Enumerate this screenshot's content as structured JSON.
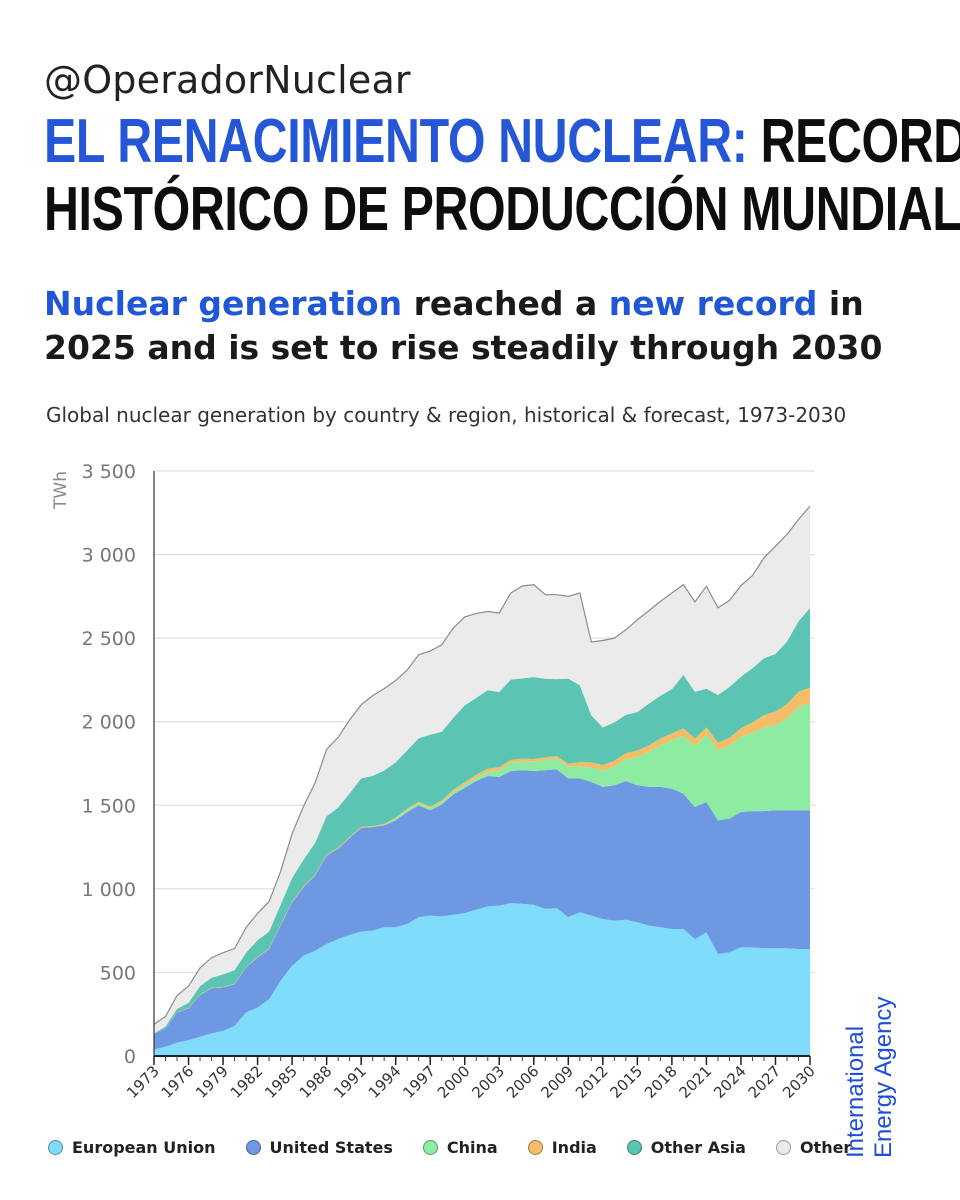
{
  "header": {
    "handle": "@OperadorNuclear",
    "headline_blue": "EL RENACIMIENTO NUCLEAR:",
    "headline_black_1": " RECORD",
    "headline_black_2": "HISTÓRICO DE PRODUCCIÓN MUNDIAL"
  },
  "subhead": {
    "part1": "Nuclear generation",
    "part2": " reached a ",
    "part3": "new record",
    "part4": " in",
    "part5": "2025 and is set to rise steadily through 2030"
  },
  "branding": {
    "line1": "International",
    "line2": "Energy Agency"
  },
  "chart_data": {
    "type": "area",
    "stacked": true,
    "title": "Global nuclear generation by country & region, historical & forecast, 1973-2030",
    "ylabel": "TWh",
    "ylim": [
      0,
      3500
    ],
    "yticks": [
      0,
      500,
      1000,
      1500,
      2000,
      2500,
      3000,
      3500
    ],
    "ytick_labels": [
      "0",
      "500",
      "1 000",
      "1 500",
      "2 000",
      "2 500",
      "3 000",
      "3 500"
    ],
    "xlim": [
      1973,
      2030
    ],
    "xticks": [
      1973,
      1976,
      1979,
      1982,
      1985,
      1988,
      1991,
      1994,
      1997,
      2000,
      2003,
      2006,
      2009,
      2012,
      2015,
      2018,
      2021,
      2024,
      2027,
      2030
    ],
    "grid": true,
    "legend_position": "bottom",
    "x": [
      1973,
      1974,
      1975,
      1976,
      1977,
      1978,
      1979,
      1980,
      1981,
      1982,
      1983,
      1984,
      1985,
      1986,
      1987,
      1988,
      1989,
      1990,
      1991,
      1992,
      1993,
      1994,
      1995,
      1996,
      1997,
      1998,
      1999,
      2000,
      2001,
      2002,
      2003,
      2004,
      2005,
      2006,
      2007,
      2008,
      2009,
      2010,
      2011,
      2012,
      2013,
      2014,
      2015,
      2016,
      2017,
      2018,
      2019,
      2020,
      2021,
      2022,
      2023,
      2024,
      2025,
      2026,
      2027,
      2028,
      2029,
      2030
    ],
    "series": [
      {
        "name": "European Union",
        "color": "#7fdcfb",
        "values": [
          40,
          55,
          80,
          95,
          115,
          135,
          150,
          180,
          260,
          290,
          340,
          450,
          540,
          600,
          630,
          670,
          700,
          725,
          745,
          750,
          770,
          770,
          790,
          830,
          840,
          835,
          845,
          855,
          875,
          895,
          900,
          915,
          910,
          905,
          880,
          885,
          830,
          860,
          840,
          820,
          810,
          815,
          800,
          780,
          770,
          760,
          760,
          700,
          740,
          610,
          620,
          650,
          650,
          645,
          645,
          645,
          640,
          640
        ]
      },
      {
        "name": "United States",
        "color": "#6e99e2",
        "values": [
          90,
          110,
          180,
          190,
          250,
          270,
          260,
          250,
          270,
          300,
          300,
          330,
          380,
          410,
          450,
          530,
          540,
          580,
          620,
          620,
          610,
          640,
          670,
          670,
          630,
          670,
          720,
          750,
          770,
          780,
          770,
          790,
          800,
          800,
          830,
          830,
          830,
          800,
          800,
          790,
          810,
          830,
          820,
          830,
          840,
          840,
          810,
          790,
          780,
          800,
          800,
          810,
          815,
          820,
          825,
          825,
          830,
          830
        ]
      },
      {
        "name": "China",
        "color": "#8eeca2",
        "values": [
          0,
          0,
          0,
          0,
          0,
          0,
          0,
          0,
          0,
          0,
          0,
          0,
          0,
          0,
          0,
          0,
          0,
          0,
          0,
          0,
          2,
          10,
          12,
          13,
          14,
          14,
          15,
          17,
          20,
          24,
          40,
          50,
          53,
          55,
          60,
          65,
          70,
          74,
          85,
          98,
          112,
          130,
          170,
          210,
          250,
          290,
          345,
          365,
          405,
          420,
          435,
          450,
          470,
          500,
          510,
          550,
          620,
          640
        ]
      },
      {
        "name": "India",
        "color": "#f5bd67",
        "values": [
          0,
          2,
          2,
          3,
          3,
          3,
          3,
          3,
          3,
          3,
          4,
          4,
          5,
          5,
          5,
          5,
          6,
          6,
          6,
          6,
          6,
          7,
          7,
          8,
          9,
          10,
          12,
          16,
          18,
          20,
          18,
          17,
          16,
          17,
          17,
          15,
          18,
          24,
          32,
          33,
          34,
          36,
          38,
          38,
          40,
          40,
          45,
          44,
          42,
          45,
          48,
          50,
          60,
          75,
          80,
          85,
          90,
          95
        ]
      },
      {
        "name": "Other Asia",
        "color": "#5cc4b2",
        "values": [
          5,
          10,
          20,
          30,
          50,
          60,
          75,
          80,
          85,
          100,
          100,
          120,
          140,
          160,
          190,
          230,
          240,
          260,
          290,
          300,
          320,
          330,
          350,
          380,
          430,
          410,
          430,
          460,
          460,
          470,
          450,
          480,
          480,
          490,
          470,
          460,
          510,
          460,
          280,
          225,
          230,
          230,
          230,
          250,
          255,
          265,
          320,
          280,
          230,
          285,
          305,
          310,
          325,
          340,
          345,
          375,
          420,
          475
        ]
      },
      {
        "name": "Other",
        "color": "#ebebeb",
        "values": [
          55,
          60,
          80,
          100,
          110,
          120,
          130,
          130,
          150,
          160,
          180,
          200,
          265,
          320,
          360,
          400,
          420,
          440,
          440,
          480,
          490,
          490,
          480,
          500,
          500,
          521,
          538,
          529,
          505,
          471,
          472,
          518,
          553,
          553,
          503,
          505,
          492,
          552,
          440,
          520,
          504,
          509,
          552,
          556,
          565,
          575,
          540,
          538,
          613,
          522,
          517,
          545,
          555,
          600,
          645,
          640,
          610,
          610
        ]
      }
    ]
  }
}
